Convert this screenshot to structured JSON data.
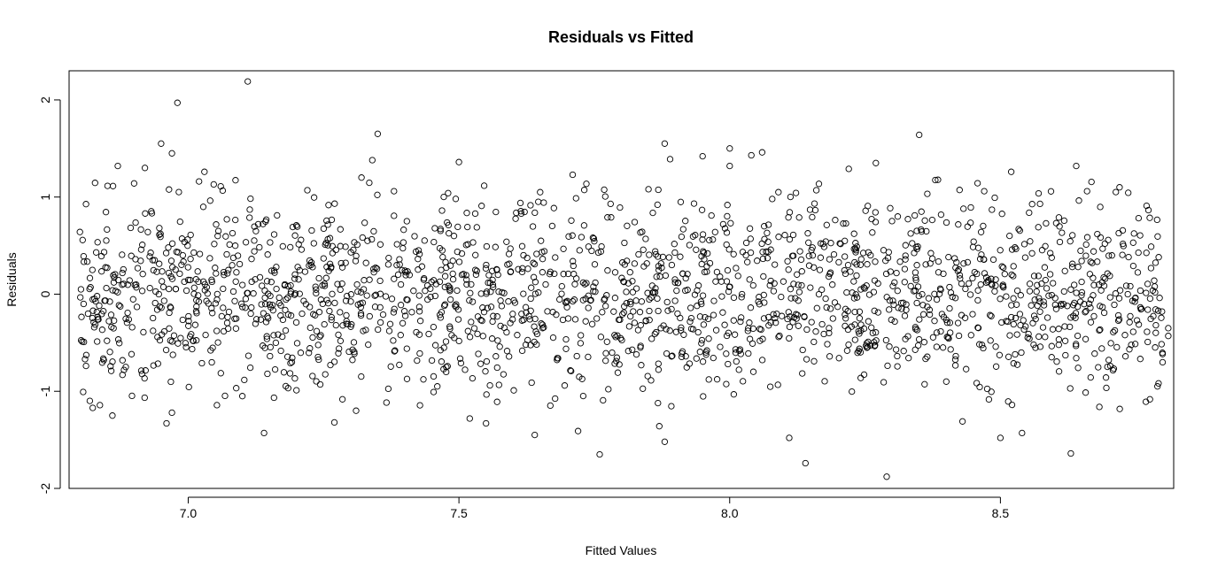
{
  "chart_data": {
    "type": "scatter",
    "title": "Residuals vs Fitted",
    "xlabel": "Fitted Values",
    "ylabel": "Residuals",
    "xlim": [
      6.78,
      8.82
    ],
    "ylim": [
      -2.0,
      2.3
    ],
    "x_ticks": [
      7.0,
      7.5,
      8.0,
      8.5
    ],
    "x_tick_labels": [
      "7.0",
      "7.5",
      "8.0",
      "8.5"
    ],
    "y_ticks": [
      -2,
      -1,
      0,
      1,
      2
    ],
    "y_tick_labels": [
      "-2",
      "-1",
      "0",
      "1",
      "2"
    ],
    "grid": false,
    "legend": "none",
    "marker": "open-circle",
    "point_color": "#000000",
    "n_points_approx": 2000,
    "points": [
      [
        6.8,
        0.64
      ],
      [
        6.83,
        0.43
      ],
      [
        6.85,
        -0.48
      ],
      [
        6.86,
        -1.25
      ],
      [
        6.87,
        1.32
      ],
      [
        6.9,
        1.14
      ],
      [
        6.92,
        1.3
      ],
      [
        6.95,
        1.55
      ],
      [
        6.97,
        1.45
      ],
      [
        6.98,
        1.97
      ],
      [
        6.99,
        0.4
      ],
      [
        6.96,
        -1.33
      ],
      [
        6.97,
        -1.22
      ],
      [
        7.02,
        1.16
      ],
      [
        7.03,
        1.26
      ],
      [
        7.06,
        1.11
      ],
      [
        7.11,
        2.19
      ],
      [
        7.1,
        -1.05
      ],
      [
        7.14,
        -1.43
      ],
      [
        7.2,
        -0.99
      ],
      [
        7.22,
        1.07
      ],
      [
        7.27,
        -1.32
      ],
      [
        7.32,
        1.2
      ],
      [
        7.34,
        1.38
      ],
      [
        7.35,
        1.65
      ],
      [
        7.31,
        -1.2
      ],
      [
        7.38,
        1.06
      ],
      [
        7.46,
        -0.95
      ],
      [
        7.48,
        1.04
      ],
      [
        7.5,
        1.36
      ],
      [
        7.52,
        -1.28
      ],
      [
        7.55,
        -1.33
      ],
      [
        7.64,
        -1.45
      ],
      [
        7.65,
        1.05
      ],
      [
        7.71,
        1.23
      ],
      [
        7.72,
        -1.41
      ],
      [
        7.76,
        -1.65
      ],
      [
        7.78,
        0.93
      ],
      [
        7.85,
        1.08
      ],
      [
        7.87,
        -1.36
      ],
      [
        7.88,
        1.55
      ],
      [
        7.88,
        -1.52
      ],
      [
        7.89,
        1.39
      ],
      [
        7.95,
        1.42
      ],
      [
        8.0,
        1.32
      ],
      [
        8.0,
        1.5
      ],
      [
        8.04,
        1.43
      ],
      [
        8.06,
        1.46
      ],
      [
        8.09,
        1.05
      ],
      [
        8.11,
        -1.48
      ],
      [
        8.14,
        -1.74
      ],
      [
        8.16,
        1.07
      ],
      [
        8.22,
        1.29
      ],
      [
        8.27,
        1.35
      ],
      [
        8.29,
        -1.88
      ],
      [
        8.35,
        1.64
      ],
      [
        8.4,
        -0.9
      ],
      [
        8.43,
        -1.31
      ],
      [
        8.47,
        1.06
      ],
      [
        8.5,
        -1.48
      ],
      [
        8.52,
        1.26
      ],
      [
        8.54,
        -1.43
      ],
      [
        8.63,
        -1.64
      ],
      [
        8.64,
        1.32
      ],
      [
        8.66,
        1.06
      ],
      [
        8.72,
        1.1
      ],
      [
        8.77,
        0.91
      ],
      [
        8.79,
        -0.95
      ],
      [
        8.81,
        -0.43
      ],
      [
        8.81,
        -0.35
      ]
    ]
  }
}
